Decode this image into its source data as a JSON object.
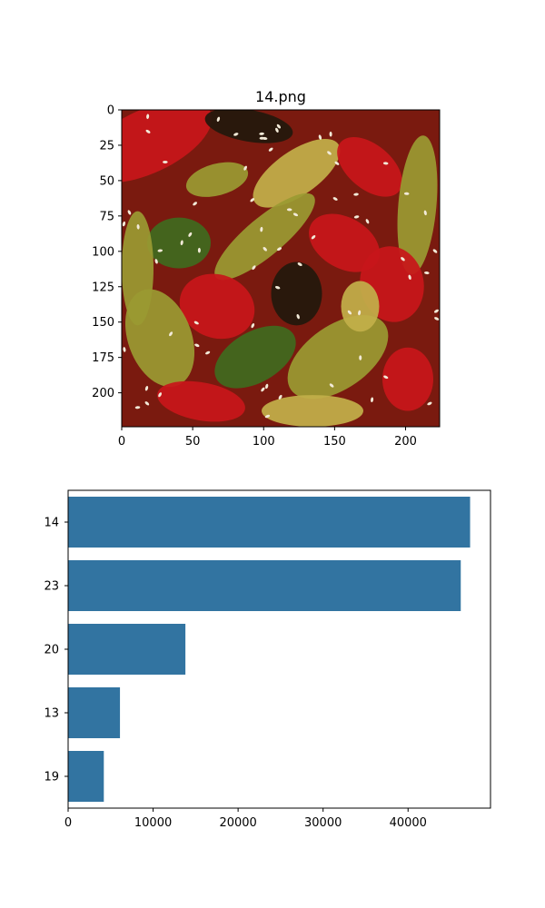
{
  "chart_data": [
    {
      "type": "image",
      "title": "14.png",
      "xlim": [
        0,
        224
      ],
      "ylim": [
        224,
        0
      ],
      "x_ticks": [
        0,
        50,
        100,
        150,
        200
      ],
      "y_ticks": [
        0,
        25,
        50,
        75,
        100,
        125,
        150,
        175,
        200
      ],
      "x_tick_labels": [
        "0",
        "50",
        "100",
        "150",
        "200"
      ],
      "y_tick_labels": [
        "0",
        "25",
        "50",
        "75",
        "100",
        "125",
        "150",
        "175",
        "200"
      ],
      "colors": {
        "base": "#7a1a0f",
        "chili": "#c8161a",
        "cucumber": "#9a9a32",
        "cucumber_light": "#c2b04a",
        "green": "#3f6a1e",
        "dark": "#22180c",
        "sesame": "#f2ead8"
      }
    },
    {
      "type": "bar",
      "orientation": "horizontal",
      "categories": [
        "14",
        "23",
        "20",
        "13",
        "19"
      ],
      "values": [
        47300,
        46200,
        13800,
        6100,
        4200
      ],
      "xlim": [
        0,
        49700
      ],
      "x_ticks": [
        0,
        10000,
        20000,
        30000,
        40000
      ],
      "x_tick_labels": [
        "0",
        "10000",
        "20000",
        "30000",
        "40000"
      ],
      "bar_color": "#3274a1"
    }
  ]
}
